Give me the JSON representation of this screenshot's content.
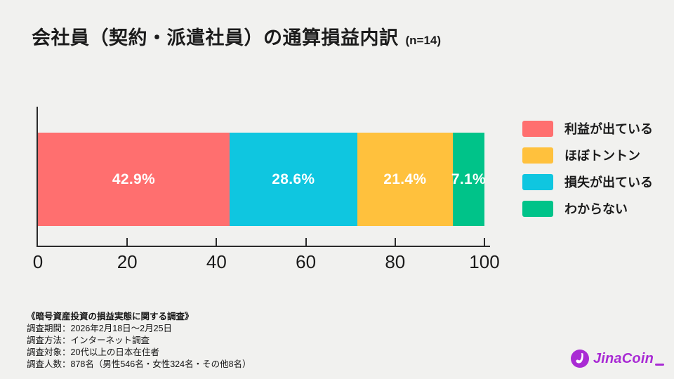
{
  "header": {
    "title": "会社員（契約・派遣社員）の通算損益内訳",
    "sample_label": "(n=14)"
  },
  "chart_data": {
    "type": "bar",
    "subtype": "horizontal_stacked_100pct",
    "title": "会社員（契約・派遣社員）の通算損益内訳 (n=14)",
    "unit": "%",
    "xlim": [
      0,
      100
    ],
    "x_ticks": [
      0,
      20,
      40,
      60,
      80,
      100
    ],
    "grid": false,
    "legend_position": "right",
    "segments": [
      {
        "label": "利益が出ている",
        "value": 42.9,
        "display": "42.9%",
        "color": "#FF6F6F"
      },
      {
        "label": "損失が出ている",
        "value": 28.6,
        "display": "28.6%",
        "color": "#0FC6E0"
      },
      {
        "label": "ほぼトントン",
        "value": 21.4,
        "display": "21.4%",
        "color": "#FFC13D"
      },
      {
        "label": "わからない",
        "value": 7.1,
        "display": "7.1%",
        "color": "#00C389"
      }
    ]
  },
  "legend": {
    "items": [
      {
        "label": "利益が出ている",
        "color": "#FF6F6F"
      },
      {
        "label": "ほぼトントン",
        "color": "#FFC13D"
      },
      {
        "label": "損失が出ている",
        "color": "#0FC6E0"
      },
      {
        "label": "わからない",
        "color": "#00C389"
      }
    ]
  },
  "survey": {
    "title": "《暗号資産投資の損益実態に関する調査》",
    "lines": [
      "調査期間：2026年2月18日～2月25日",
      "調査方法：インターネット調査",
      "調査対象：20代以上の日本在住者",
      "調査人数：878名（男性546名・女性324名・その他8名）"
    ]
  },
  "logo": {
    "text": "JinaCoin",
    "color": "#A92BD4"
  }
}
